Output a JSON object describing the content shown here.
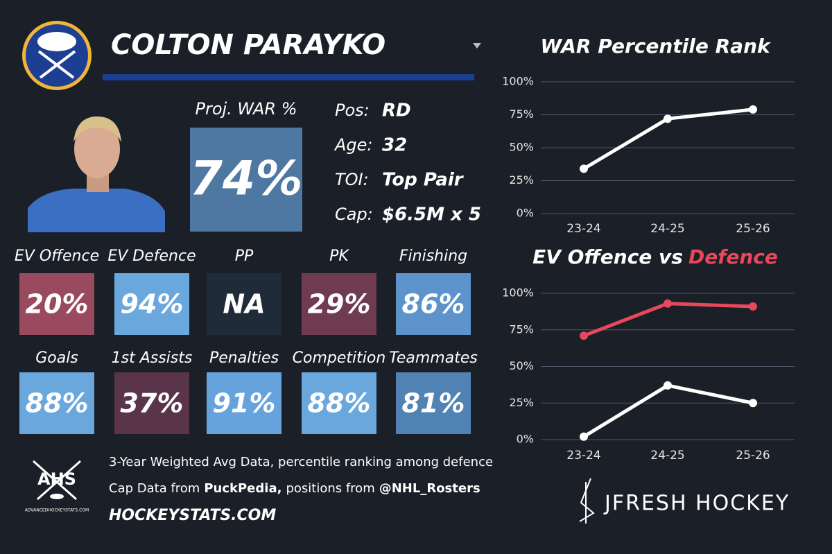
{
  "card": {
    "player_name": "COLTON PARAYKO",
    "proj_war_label": "Proj. WAR %",
    "proj_war_value": "74%",
    "proj_war_color": "#4e78a2",
    "info": [
      {
        "label": "Pos:",
        "value": "RD"
      },
      {
        "label": "Age:",
        "value": "32"
      },
      {
        "label": "TOI:",
        "value": "Top Pair"
      },
      {
        "label": "Cap:",
        "value": "$6.5M x 5"
      }
    ],
    "tiles": [
      {
        "label": "EV Offence",
        "value": "20%",
        "color": "#9a4a5e"
      },
      {
        "label": "EV Defence",
        "value": "94%",
        "color": "#6aa7dd"
      },
      {
        "label": "PP",
        "value": "NA",
        "color": "#1f2b39"
      },
      {
        "label": "PK",
        "value": "29%",
        "color": "#6e3b51"
      },
      {
        "label": "Finishing",
        "value": "86%",
        "color": "#5c93cb"
      },
      {
        "label": "Goals",
        "value": "88%",
        "color": "#6aa7dd"
      },
      {
        "label": "1st Assists",
        "value": "37%",
        "color": "#5a3549"
      },
      {
        "label": "Penalties",
        "value": "91%",
        "color": "#66a3dc"
      },
      {
        "label": "Competition",
        "value": "88%",
        "color": "#6aa7dd"
      },
      {
        "label": "Teammates",
        "value": "81%",
        "color": "#5083b3"
      }
    ],
    "footer": {
      "line1": "3-Year Weighted Avg Data, percentile ranking among defence",
      "line2": [
        "Cap Data from",
        "PuckPedia,",
        "positions from",
        "@NHL_Rosters"
      ],
      "site": "HOCKEYSTATS.COM",
      "logo_text": "AHS",
      "logo_url": "ADVANCEDHOCKEYSTATS.COM",
      "brand": "JFRESH HOCKEY"
    }
  },
  "chart_data": [
    {
      "type": "line",
      "title": "WAR Percentile Rank",
      "categories": [
        "23-24",
        "24-25",
        "25-26"
      ],
      "series": [
        {
          "color": "#ffffff",
          "values": [
            34,
            72,
            79
          ]
        }
      ],
      "ylim": [
        0,
        100
      ],
      "yticks": [
        {
          "value": 0,
          "label": "0%"
        },
        {
          "value": 25,
          "label": "25%"
        },
        {
          "value": 50,
          "label": "50%"
        },
        {
          "value": 75,
          "label": "75%"
        },
        {
          "value": 100,
          "label": "100%"
        }
      ],
      "grid": true
    },
    {
      "type": "line",
      "title": "EV Offence vs",
      "title_highlight": "Defence",
      "title_highlight_color": "#e8475c",
      "categories": [
        "23-24",
        "24-25",
        "25-26"
      ],
      "series": [
        {
          "color": "#e8475c",
          "values": [
            71,
            93,
            91
          ]
        },
        {
          "color": "#ffffff",
          "values": [
            2,
            37,
            25
          ]
        }
      ],
      "ylim": [
        0,
        100
      ],
      "yticks": [
        {
          "value": 0,
          "label": "0%"
        },
        {
          "value": 25,
          "label": "25%"
        },
        {
          "value": 50,
          "label": "50%"
        },
        {
          "value": 75,
          "label": "75%"
        },
        {
          "value": 100,
          "label": "100%"
        }
      ],
      "grid": true
    }
  ]
}
